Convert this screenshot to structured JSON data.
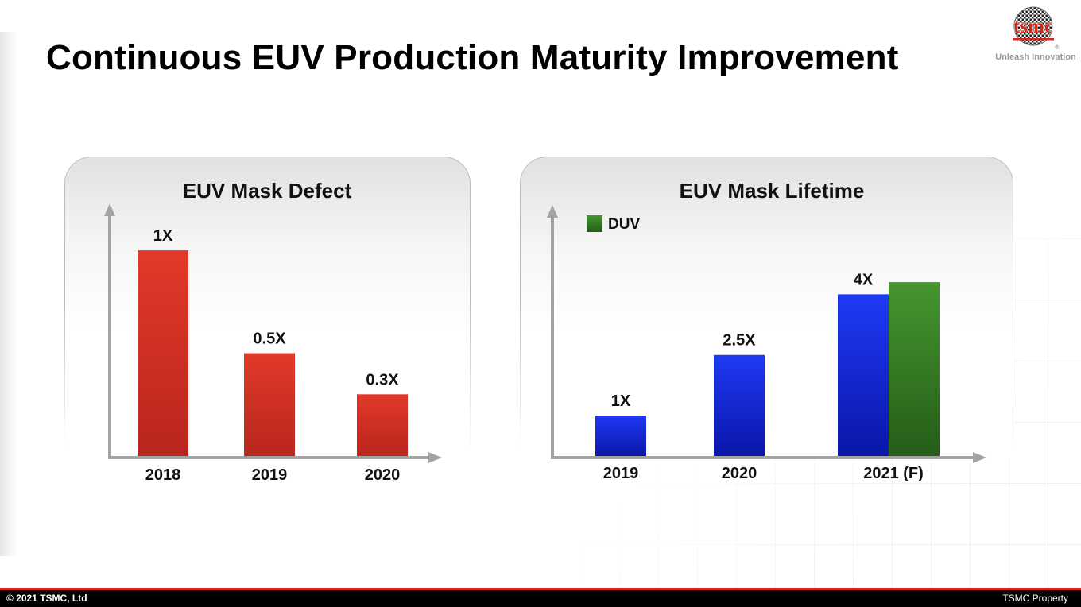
{
  "page": {
    "title": "Continuous EUV Production Maturity Improvement"
  },
  "logo": {
    "wordmark": "tsmc",
    "registered": "®",
    "tagline": "Unleash Innovation"
  },
  "footer": {
    "left": "© 2021 TSMC, Ltd",
    "right": "TSMC Property"
  },
  "colors": {
    "brand_red": "#d9261c",
    "bar_red": "#d83224",
    "bar_blue": "#1a2fe6",
    "bar_green": "#3a8a2c",
    "axis_gray": "#a3a3a3"
  },
  "chart_data": [
    {
      "type": "bar",
      "title": "EUV Mask Defect",
      "categories": [
        "2018",
        "2019",
        "2020"
      ],
      "series": [
        {
          "values": [
            1,
            0.5,
            0.3
          ],
          "labels": [
            "1X",
            "0.5X",
            "0.3X"
          ],
          "color": "#d83224"
        }
      ],
      "xlabel": "",
      "ylabel": "",
      "ylim": [
        0,
        1.12
      ],
      "grid": false
    },
    {
      "type": "bar",
      "title": "EUV Mask Lifetime",
      "categories": [
        "2019",
        "2020",
        "2021 (F)"
      ],
      "series": [
        {
          "values": [
            1,
            2.5,
            4
          ],
          "labels": [
            "1X",
            "2.5X",
            "4X"
          ],
          "color": "#1a2fe6"
        },
        {
          "name": "DUV",
          "values": [
            null,
            null,
            4.3
          ],
          "labels": [
            null,
            null,
            null
          ],
          "color": "#3a8a2c"
        }
      ],
      "xlabel": "",
      "ylabel": "",
      "ylim": [
        0,
        5.5
      ],
      "grid": false,
      "legend": {
        "entries": [
          "DUV"
        ],
        "position": "top-left"
      }
    }
  ]
}
